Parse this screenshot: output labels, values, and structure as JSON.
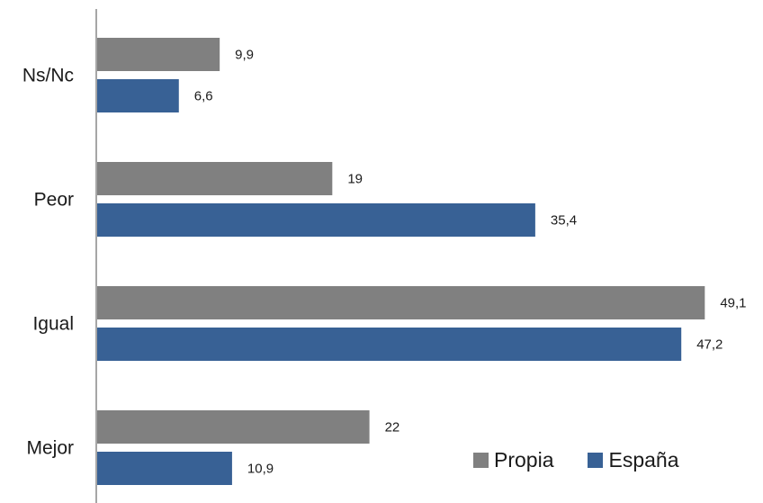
{
  "chart_data": {
    "type": "bar",
    "orientation": "horizontal",
    "categories": [
      "Ns/Nc",
      "Peor",
      "Igual",
      "Mejor"
    ],
    "series": [
      {
        "name": "Propia",
        "color": "#808080",
        "values": [
          9.9,
          19,
          49.1,
          22
        ]
      },
      {
        "name": "España",
        "color": "#386195",
        "values": [
          6.6,
          35.4,
          47.2,
          10.9
        ]
      }
    ],
    "value_labels": {
      "Propia": [
        "9,9",
        "19",
        "49,1",
        "22"
      ],
      "España": [
        "6,6",
        "35,4",
        "47,2",
        "10,9"
      ]
    },
    "xlim": [
      0,
      50
    ],
    "grid": false,
    "legend_position": "bottom-right"
  }
}
